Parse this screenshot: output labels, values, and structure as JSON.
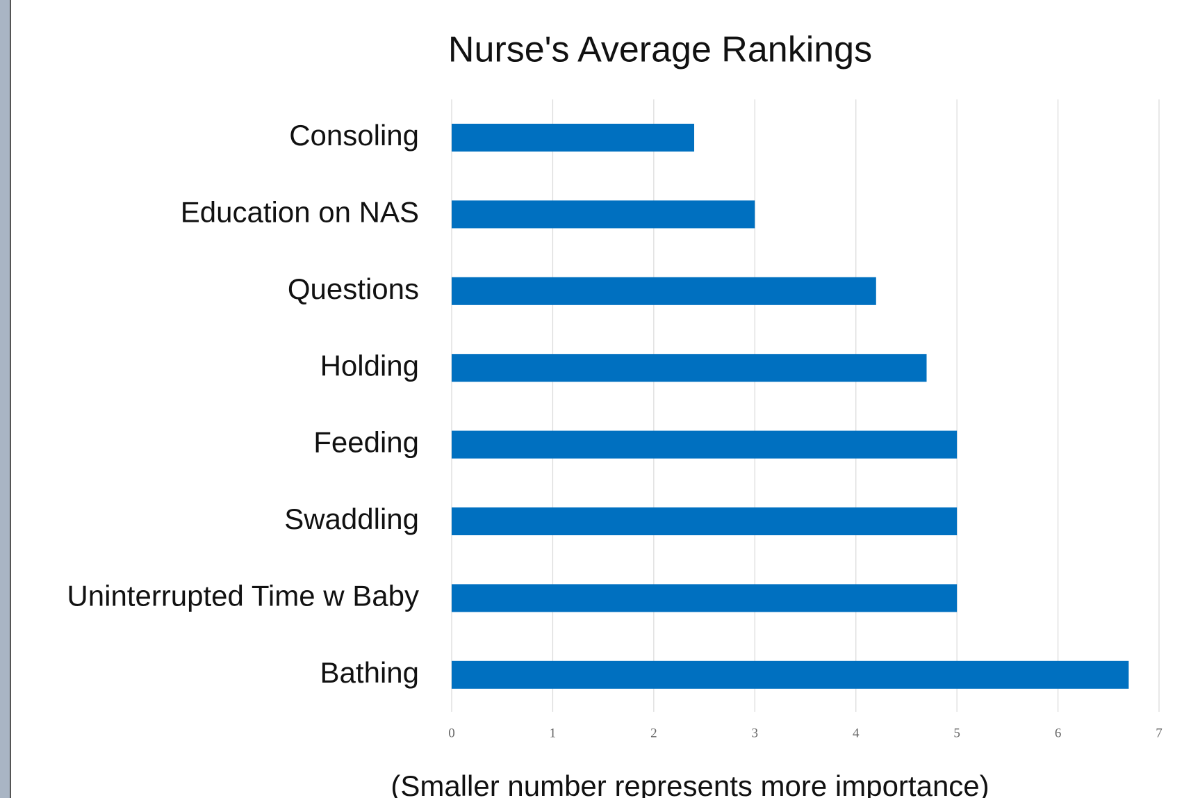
{
  "chart_data": {
    "type": "bar",
    "orientation": "horizontal",
    "title": "Nurse's Average Rankings",
    "subtitle": "(Smaller number represents more importance)",
    "categories": [
      "Consoling",
      "Education on NAS",
      "Questions",
      "Holding",
      "Feeding",
      "Swaddling",
      "Uninterrupted Time w Baby",
      "Bathing"
    ],
    "values": [
      2.4,
      3.0,
      4.2,
      4.7,
      5,
      5,
      5,
      6.7
    ],
    "color": "#0070c0",
    "xlim": [
      0,
      7
    ],
    "xticks": [
      0,
      1,
      2,
      3,
      4,
      5,
      6,
      7
    ],
    "grid": true
  }
}
